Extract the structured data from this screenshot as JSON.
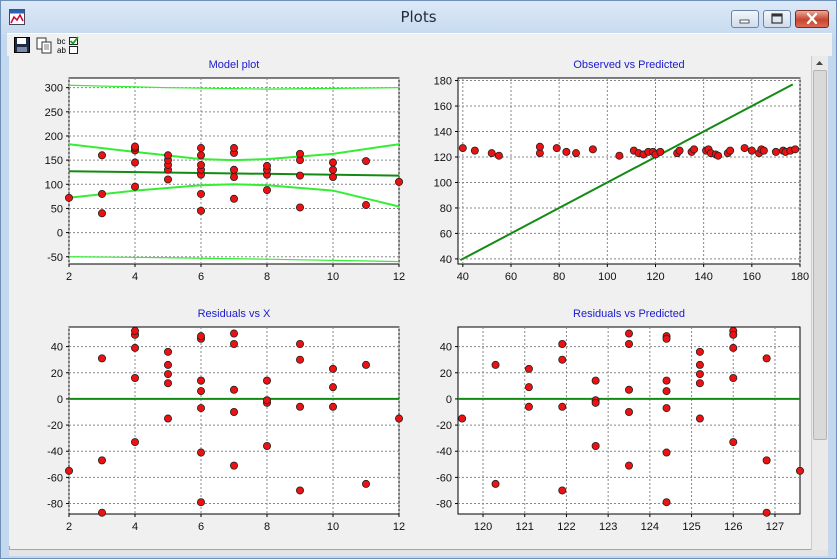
{
  "window": {
    "title": "Plots"
  },
  "toolbar": {
    "save_icon": "floppy-disk-icon",
    "copy_icon": "copy-icon",
    "labels_icon": "toggle-labels-icon",
    "labels_text_top": "bc",
    "labels_text_bottom": "ab"
  },
  "colors": {
    "band": "#33ee33",
    "fit": "#138a13",
    "point": "#ee1111",
    "title": "#1a1acc"
  },
  "chart_data": [
    {
      "type": "scatter",
      "title": "Model plot",
      "xlim": [
        2,
        12
      ],
      "ylim": [
        -65,
        320
      ],
      "xticks": [
        2,
        4,
        6,
        8,
        10,
        12
      ],
      "yticks": [
        -50,
        0,
        50,
        100,
        150,
        200,
        250,
        300
      ],
      "points": [
        [
          2,
          72
        ],
        [
          3,
          40
        ],
        [
          3,
          80
        ],
        [
          3,
          160
        ],
        [
          4,
          95
        ],
        [
          4,
          145
        ],
        [
          4,
          170
        ],
        [
          4,
          175
        ],
        [
          4,
          178
        ],
        [
          5,
          110
        ],
        [
          5,
          130
        ],
        [
          5,
          140
        ],
        [
          5,
          150
        ],
        [
          5,
          160
        ],
        [
          6,
          45
        ],
        [
          6,
          80
        ],
        [
          6,
          120
        ],
        [
          6,
          130
        ],
        [
          6,
          140
        ],
        [
          6,
          160
        ],
        [
          6,
          175
        ],
        [
          7,
          70
        ],
        [
          7,
          115
        ],
        [
          7,
          130
        ],
        [
          7,
          165
        ],
        [
          7,
          175
        ],
        [
          8,
          88
        ],
        [
          8,
          120
        ],
        [
          8,
          130
        ],
        [
          8,
          138
        ],
        [
          9,
          52
        ],
        [
          9,
          118
        ],
        [
          9,
          150
        ],
        [
          9,
          163
        ],
        [
          10,
          115
        ],
        [
          10,
          130
        ],
        [
          10,
          145
        ],
        [
          11,
          57
        ],
        [
          11,
          148
        ],
        [
          12,
          105
        ]
      ],
      "lines": [
        {
          "name": "fit",
          "x": [
            2,
            12
          ],
          "y": [
            127,
            118
          ]
        },
        {
          "name": "conf-upper",
          "x": [
            2,
            4,
            6,
            7,
            8,
            10,
            12
          ],
          "y": [
            183,
            167,
            152,
            150,
            152,
            163,
            183
          ]
        },
        {
          "name": "conf-lower",
          "x": [
            2,
            4,
            6,
            7,
            8,
            10,
            12
          ],
          "y": [
            72,
            87,
            98,
            100,
            98,
            87,
            54
          ]
        },
        {
          "name": "pred-upper",
          "x": [
            2,
            5,
            8,
            12
          ],
          "y": [
            305,
            300,
            297,
            300
          ]
        },
        {
          "name": "pred-lower",
          "x": [
            2,
            5,
            8,
            12
          ],
          "y": [
            -50,
            -52,
            -55,
            -60
          ]
        }
      ]
    },
    {
      "type": "scatter",
      "title": "Observed vs Predicted",
      "xlim": [
        38,
        180
      ],
      "ylim": [
        36,
        182
      ],
      "xticks": [
        40,
        60,
        80,
        100,
        120,
        140,
        160,
        180
      ],
      "yticks": [
        40,
        60,
        80,
        100,
        120,
        140,
        160,
        180
      ],
      "points": [
        [
          40,
          127
        ],
        [
          45,
          125
        ],
        [
          52,
          123
        ],
        [
          55,
          121
        ],
        [
          72,
          123
        ],
        [
          72,
          128
        ],
        [
          79,
          127
        ],
        [
          83,
          124
        ],
        [
          87,
          123
        ],
        [
          94,
          126
        ],
        [
          105,
          121
        ],
        [
          111,
          125
        ],
        [
          113,
          123
        ],
        [
          115,
          122
        ],
        [
          117,
          124
        ],
        [
          119,
          124
        ],
        [
          120,
          122
        ],
        [
          122,
          124
        ],
        [
          129,
          123
        ],
        [
          130,
          125
        ],
        [
          135,
          124
        ],
        [
          136,
          126
        ],
        [
          141,
          125
        ],
        [
          142,
          126
        ],
        [
          143,
          123
        ],
        [
          145,
          122
        ],
        [
          146,
          121
        ],
        [
          150,
          123
        ],
        [
          151,
          125
        ],
        [
          157,
          127
        ],
        [
          160,
          125
        ],
        [
          163,
          123
        ],
        [
          164,
          126
        ],
        [
          165,
          125
        ],
        [
          170,
          124
        ],
        [
          173,
          125
        ],
        [
          174,
          124
        ],
        [
          176,
          125
        ],
        [
          178,
          126
        ]
      ],
      "lines": [
        {
          "name": "identity",
          "x": [
            39,
            177
          ],
          "y": [
            39,
            177
          ]
        }
      ]
    },
    {
      "type": "scatter",
      "title": "Residuals vs X",
      "xlim": [
        2,
        12
      ],
      "ylim": [
        -88,
        55
      ],
      "xticks": [
        2,
        4,
        6,
        8,
        10,
        12
      ],
      "yticks": [
        -80,
        -60,
        -40,
        -20,
        0,
        20,
        40
      ],
      "points": [
        [
          2,
          -55
        ],
        [
          3,
          -87
        ],
        [
          3,
          -47
        ],
        [
          3,
          31
        ],
        [
          4,
          -33
        ],
        [
          4,
          16
        ],
        [
          4,
          39
        ],
        [
          4,
          49
        ],
        [
          4,
          52
        ],
        [
          5,
          -15
        ],
        [
          5,
          12
        ],
        [
          5,
          19
        ],
        [
          5,
          26
        ],
        [
          5,
          36
        ],
        [
          6,
          -79
        ],
        [
          6,
          -41
        ],
        [
          6,
          -7
        ],
        [
          6,
          6
        ],
        [
          6,
          14
        ],
        [
          6,
          46
        ],
        [
          6,
          48
        ],
        [
          7,
          -51
        ],
        [
          7,
          -10
        ],
        [
          7,
          7
        ],
        [
          7,
          42
        ],
        [
          7,
          50
        ],
        [
          8,
          -36
        ],
        [
          8,
          -3
        ],
        [
          8,
          -1
        ],
        [
          8,
          14
        ],
        [
          9,
          -70
        ],
        [
          9,
          -6
        ],
        [
          9,
          30
        ],
        [
          9,
          42
        ],
        [
          10,
          -6
        ],
        [
          10,
          9
        ],
        [
          10,
          23
        ],
        [
          11,
          -65
        ],
        [
          11,
          26
        ],
        [
          12,
          -15
        ]
      ],
      "lines": [
        {
          "name": "zero",
          "x": [
            2,
            12
          ],
          "y": [
            0,
            0
          ]
        }
      ]
    },
    {
      "type": "scatter",
      "title": "Residuals vs Predicted",
      "xlim": [
        119.4,
        127.6
      ],
      "ylim": [
        -88,
        55
      ],
      "xticks": [
        120,
        121,
        122,
        123,
        124,
        125,
        126,
        127
      ],
      "yticks": [
        -80,
        -60,
        -40,
        -20,
        0,
        20,
        40
      ],
      "points": [
        [
          119.5,
          -15
        ],
        [
          120.3,
          26
        ],
        [
          120.3,
          -65
        ],
        [
          121.1,
          23
        ],
        [
          121.1,
          9
        ],
        [
          121.1,
          -6
        ],
        [
          121.9,
          42
        ],
        [
          121.9,
          30
        ],
        [
          121.9,
          -6
        ],
        [
          121.9,
          -70
        ],
        [
          122.7,
          14
        ],
        [
          122.7,
          -1
        ],
        [
          122.7,
          -3
        ],
        [
          122.7,
          -36
        ],
        [
          123.5,
          50
        ],
        [
          123.5,
          42
        ],
        [
          123.5,
          7
        ],
        [
          123.5,
          -10
        ],
        [
          123.5,
          -51
        ],
        [
          124.4,
          48
        ],
        [
          124.4,
          46
        ],
        [
          124.4,
          14
        ],
        [
          124.4,
          6
        ],
        [
          124.4,
          -7
        ],
        [
          124.4,
          -41
        ],
        [
          124.4,
          -79
        ],
        [
          125.2,
          36
        ],
        [
          125.2,
          26
        ],
        [
          125.2,
          19
        ],
        [
          125.2,
          12
        ],
        [
          125.2,
          -15
        ],
        [
          126,
          52
        ],
        [
          126,
          49
        ],
        [
          126,
          39
        ],
        [
          126,
          16
        ],
        [
          126,
          -33
        ],
        [
          126.8,
          31
        ],
        [
          126.8,
          -47
        ],
        [
          126.8,
          -87
        ],
        [
          127.6,
          -55
        ]
      ],
      "lines": [
        {
          "name": "zero",
          "x": [
            119.4,
            127.6
          ],
          "y": [
            0,
            0
          ]
        }
      ]
    }
  ]
}
